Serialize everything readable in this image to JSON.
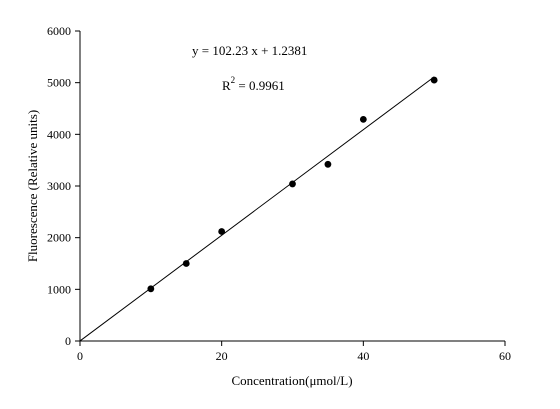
{
  "chart_data": {
    "type": "scatter",
    "xlabel": "Concentration(μmol/L)",
    "ylabel": "Fluorescence (Relative units)",
    "xlim": [
      0,
      60
    ],
    "ylim": [
      0,
      6000
    ],
    "xticks": [
      0,
      20,
      40,
      60
    ],
    "yticks": [
      0,
      1000,
      2000,
      3000,
      4000,
      5000,
      6000
    ],
    "grid": false,
    "series": [
      {
        "x": [
          10,
          15,
          20,
          30,
          35,
          40,
          50
        ],
        "y": [
          1010,
          1500,
          2120,
          3040,
          3420,
          4290,
          5050
        ]
      }
    ],
    "fit_line": {
      "slope": 102.23,
      "intercept": 1.2381,
      "x_range": [
        0,
        50
      ]
    },
    "annotations": {
      "equation": "y = 102.23 x + 1.2381",
      "r2_prefix": "R",
      "r2_sup": "2",
      "r2_value": " = 0.9961"
    }
  }
}
